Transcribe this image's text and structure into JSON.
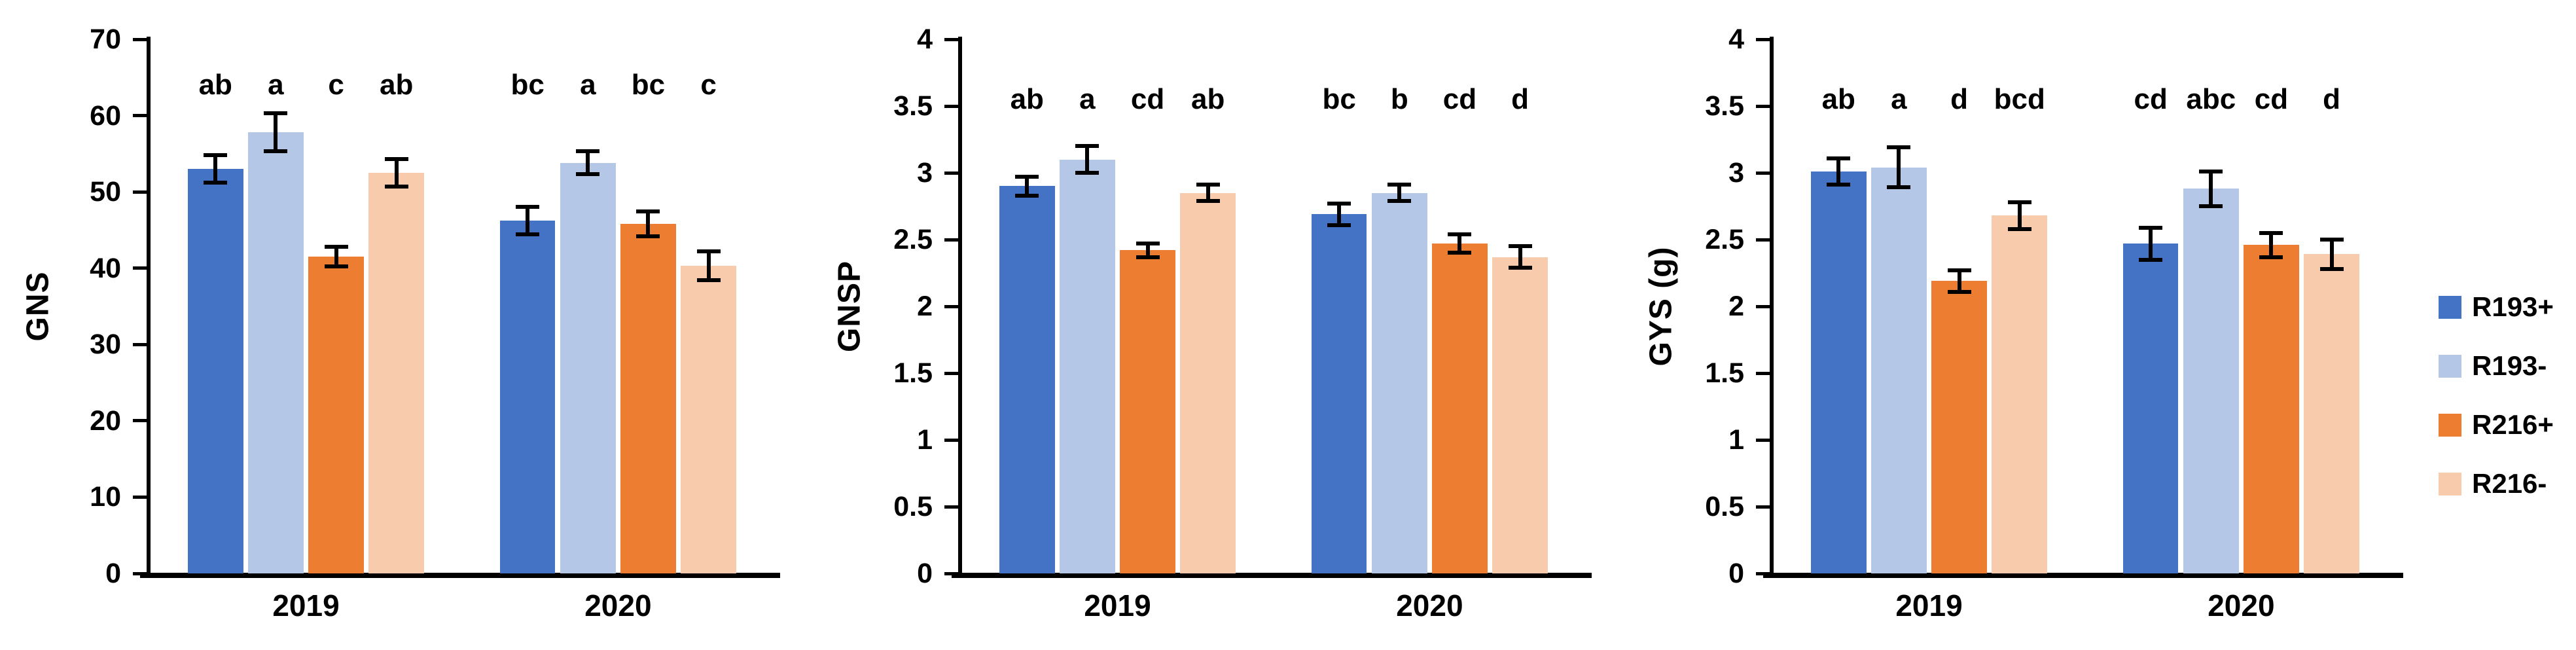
{
  "figure": {
    "background": "#ffffff"
  },
  "legend": {
    "position": "right",
    "items": [
      {
        "label": "R193+",
        "color": "#4472C4"
      },
      {
        "label": "R193-",
        "color": "#B4C7E7"
      },
      {
        "label": "R216+",
        "color": "#ED7D31"
      },
      {
        "label": "R216-",
        "color": "#F8CBAD"
      }
    ]
  },
  "chart_data": [
    {
      "type": "bar",
      "ylabel": "GNS",
      "categories": [
        "2019",
        "2020"
      ],
      "ylim": [
        0,
        70
      ],
      "yticks": [
        0,
        10,
        20,
        30,
        40,
        50,
        60,
        70
      ],
      "grid": false,
      "error_bars": true,
      "letters_y": 64,
      "series": [
        {
          "name": "R193+",
          "color": "#4472C4",
          "values": [
            53.0,
            46.2
          ],
          "errors": [
            1.8,
            1.8
          ],
          "letters": [
            "ab",
            "bc"
          ]
        },
        {
          "name": "R193-",
          "color": "#B4C7E7",
          "values": [
            57.8,
            53.8
          ],
          "errors": [
            2.5,
            1.5
          ],
          "letters": [
            "a",
            "a"
          ]
        },
        {
          "name": "R216+",
          "color": "#ED7D31",
          "values": [
            41.5,
            45.8
          ],
          "errors": [
            1.3,
            1.6
          ],
          "letters": [
            "c",
            "bc"
          ]
        },
        {
          "name": "R216-",
          "color": "#F8CBAD",
          "values": [
            52.5,
            40.3
          ],
          "errors": [
            1.8,
            1.9
          ],
          "letters": [
            "ab",
            "c"
          ]
        }
      ]
    },
    {
      "type": "bar",
      "ylabel": "GNSP",
      "categories": [
        "2019",
        "2020"
      ],
      "ylim": [
        0,
        4
      ],
      "yticks": [
        0,
        0.5,
        1,
        1.5,
        2,
        2.5,
        3,
        3.5,
        4
      ],
      "grid": false,
      "error_bars": true,
      "letters_y": 3.55,
      "series": [
        {
          "name": "R193+",
          "color": "#4472C4",
          "values": [
            2.9,
            2.69
          ],
          "errors": [
            0.07,
            0.08
          ],
          "letters": [
            "ab",
            "bc"
          ]
        },
        {
          "name": "R193-",
          "color": "#B4C7E7",
          "values": [
            3.1,
            2.85
          ],
          "errors": [
            0.1,
            0.06
          ],
          "letters": [
            "a",
            "b"
          ]
        },
        {
          "name": "R216+",
          "color": "#ED7D31",
          "values": [
            2.42,
            2.47
          ],
          "errors": [
            0.05,
            0.07
          ],
          "letters": [
            "cd",
            "cd"
          ]
        },
        {
          "name": "R216-",
          "color": "#F8CBAD",
          "values": [
            2.85,
            2.37
          ],
          "errors": [
            0.06,
            0.08
          ],
          "letters": [
            "ab",
            "d"
          ]
        }
      ]
    },
    {
      "type": "bar",
      "ylabel": "GYS (g)",
      "categories": [
        "2019",
        "2020"
      ],
      "ylim": [
        0,
        4
      ],
      "yticks": [
        0,
        0.5,
        1,
        1.5,
        2,
        2.5,
        3,
        3.5,
        4
      ],
      "grid": false,
      "error_bars": true,
      "letters_y": 3.55,
      "series": [
        {
          "name": "R193+",
          "color": "#4472C4",
          "values": [
            3.01,
            2.47
          ],
          "errors": [
            0.1,
            0.12
          ],
          "letters": [
            "ab",
            "cd"
          ]
        },
        {
          "name": "R193-",
          "color": "#B4C7E7",
          "values": [
            3.04,
            2.88
          ],
          "errors": [
            0.15,
            0.13
          ],
          "letters": [
            "a",
            "abc"
          ]
        },
        {
          "name": "R216+",
          "color": "#ED7D31",
          "values": [
            2.19,
            2.46
          ],
          "errors": [
            0.08,
            0.09
          ],
          "letters": [
            "d",
            "cd"
          ]
        },
        {
          "name": "R216-",
          "color": "#F8CBAD",
          "values": [
            2.68,
            2.39
          ],
          "errors": [
            0.1,
            0.11
          ],
          "letters": [
            "bcd",
            "d"
          ]
        }
      ]
    }
  ]
}
